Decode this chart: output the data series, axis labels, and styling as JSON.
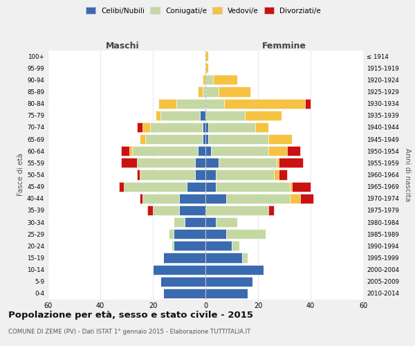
{
  "age_groups_bottom_to_top": [
    "0-4",
    "5-9",
    "10-14",
    "15-19",
    "20-24",
    "25-29",
    "30-34",
    "35-39",
    "40-44",
    "45-49",
    "50-54",
    "55-59",
    "60-64",
    "65-69",
    "70-74",
    "75-79",
    "80-84",
    "85-89",
    "90-94",
    "95-99",
    "100+"
  ],
  "birth_years_bottom_to_top": [
    "2010-2014",
    "2005-2009",
    "2000-2004",
    "1995-1999",
    "1990-1994",
    "1985-1989",
    "1980-1984",
    "1975-1979",
    "1970-1974",
    "1965-1969",
    "1960-1964",
    "1955-1959",
    "1950-1954",
    "1945-1949",
    "1940-1944",
    "1935-1939",
    "1930-1934",
    "1925-1929",
    "1920-1924",
    "1915-1919",
    "≤ 1914"
  ],
  "colors": {
    "celibe": "#3a6ab0",
    "coniugato": "#c5d8a4",
    "vedovo": "#f5c242",
    "divorziato": "#cc1111"
  },
  "maschi": {
    "celibe": [
      16,
      17,
      20,
      16,
      12,
      12,
      8,
      10,
      10,
      7,
      4,
      4,
      3,
      1,
      1,
      2,
      0,
      0,
      0,
      0,
      0
    ],
    "coniugato": [
      0,
      0,
      0,
      0,
      1,
      2,
      4,
      10,
      14,
      24,
      21,
      22,
      25,
      22,
      20,
      15,
      11,
      1,
      0,
      0,
      0
    ],
    "vedovo": [
      0,
      0,
      0,
      0,
      0,
      0,
      0,
      0,
      0,
      0,
      0,
      0,
      1,
      2,
      3,
      2,
      7,
      2,
      1,
      0,
      0
    ],
    "divorziato": [
      0,
      0,
      0,
      0,
      0,
      0,
      0,
      2,
      1,
      2,
      1,
      6,
      3,
      0,
      2,
      0,
      0,
      0,
      0,
      0,
      0
    ]
  },
  "femmine": {
    "celibe": [
      16,
      18,
      22,
      14,
      10,
      8,
      4,
      0,
      8,
      4,
      4,
      5,
      2,
      1,
      1,
      0,
      0,
      0,
      0,
      0,
      0
    ],
    "coniugato": [
      0,
      0,
      0,
      2,
      3,
      15,
      8,
      24,
      24,
      28,
      22,
      22,
      22,
      23,
      18,
      15,
      7,
      5,
      3,
      0,
      0
    ],
    "vedovo": [
      0,
      0,
      0,
      0,
      0,
      0,
      0,
      0,
      4,
      1,
      2,
      1,
      7,
      9,
      5,
      14,
      31,
      12,
      9,
      1,
      1
    ],
    "divorziato": [
      0,
      0,
      0,
      0,
      0,
      0,
      0,
      2,
      5,
      7,
      3,
      9,
      5,
      0,
      0,
      0,
      2,
      0,
      0,
      0,
      0
    ]
  },
  "xlim": 60,
  "title": "Popolazione per età, sesso e stato civile - 2015",
  "subtitle": "COMUNE DI ZEME (PV) - Dati ISTAT 1° gennaio 2015 - Elaborazione TUTTITALIA.IT",
  "xlabel_left": "Maschi",
  "xlabel_right": "Femmine",
  "ylabel_left": "Fasce di età",
  "ylabel_right": "Anni di nascita",
  "legend_labels": [
    "Celibi/Nubili",
    "Coniugati/e",
    "Vedovi/e",
    "Divorziati/e"
  ],
  "bg_color": "#f0f0f0",
  "plot_bg_color": "#ffffff",
  "grid_color": "#cccccc"
}
